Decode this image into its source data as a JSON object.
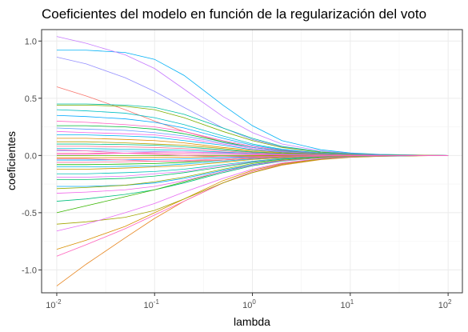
{
  "chart_data": {
    "type": "line",
    "title": "Coeficientes del modelo en función de la regularización del voto",
    "xlabel": "lambda",
    "ylabel": "coeficientes",
    "x_scale": "log10",
    "xlim": [
      0.007,
      140
    ],
    "ylim": [
      -1.2,
      1.1
    ],
    "x_ticks": [
      {
        "value": 0.01,
        "base": "10",
        "exp": "-2"
      },
      {
        "value": 0.1,
        "base": "10",
        "exp": "-1"
      },
      {
        "value": 1,
        "base": "10",
        "exp": "0"
      },
      {
        "value": 10,
        "base": "10",
        "exp": "1"
      },
      {
        "value": 100,
        "base": "10",
        "exp": "2"
      }
    ],
    "y_ticks": [
      {
        "value": -1.0,
        "label": "-1.0"
      },
      {
        "value": -0.5,
        "label": "-0.5"
      },
      {
        "value": 0.0,
        "label": "0.0"
      },
      {
        "value": 0.5,
        "label": "0.5"
      },
      {
        "value": 1.0,
        "label": "1.0"
      }
    ],
    "grid": true,
    "legend": "none",
    "x": [
      0.01,
      0.02,
      0.05,
      0.1,
      0.2,
      0.5,
      1,
      2,
      5,
      10,
      20,
      50,
      100
    ],
    "series": [
      {
        "color": "#F8766D",
        "values": [
          0.6,
          0.52,
          0.4,
          0.3,
          0.21,
          0.12,
          0.07,
          0.04,
          0.017,
          0.008,
          0.004,
          0.002,
          0.0
        ]
      },
      {
        "color": "#E7851E",
        "values": [
          -1.14,
          -0.95,
          -0.72,
          -0.55,
          -0.4,
          -0.24,
          -0.15,
          -0.085,
          -0.036,
          -0.017,
          -0.008,
          -0.003,
          0.0
        ]
      },
      {
        "color": "#00B0F6",
        "values": [
          0.92,
          0.92,
          0.9,
          0.84,
          0.7,
          0.44,
          0.26,
          0.13,
          0.05,
          0.022,
          0.01,
          0.004,
          0.0
        ]
      },
      {
        "color": "#C77CFF",
        "values": [
          1.04,
          0.98,
          0.88,
          0.76,
          0.58,
          0.34,
          0.2,
          0.1,
          0.04,
          0.018,
          0.008,
          0.003,
          0.0
        ]
      },
      {
        "color": "#9590FF",
        "values": [
          0.86,
          0.8,
          0.68,
          0.56,
          0.42,
          0.24,
          0.14,
          0.075,
          0.03,
          0.014,
          0.006,
          0.002,
          0.0
        ]
      },
      {
        "color": "#FF62BC",
        "values": [
          -0.88,
          -0.78,
          -0.64,
          -0.52,
          -0.4,
          -0.24,
          -0.14,
          -0.075,
          -0.03,
          -0.014,
          -0.006,
          -0.002,
          0.0
        ]
      },
      {
        "color": "#D89000",
        "values": [
          -0.82,
          -0.74,
          -0.62,
          -0.5,
          -0.38,
          -0.22,
          -0.13,
          -0.07,
          -0.028,
          -0.013,
          -0.006,
          -0.002,
          0.0
        ]
      },
      {
        "color": "#A3A500",
        "values": [
          -0.6,
          -0.58,
          -0.54,
          -0.48,
          -0.38,
          -0.24,
          -0.15,
          -0.08,
          -0.032,
          -0.015,
          -0.007,
          -0.003,
          0.0
        ]
      },
      {
        "color": "#E76BF3",
        "values": [
          -0.66,
          -0.6,
          -0.5,
          -0.42,
          -0.32,
          -0.2,
          -0.12,
          -0.065,
          -0.026,
          -0.012,
          -0.005,
          -0.002,
          0.0
        ]
      },
      {
        "color": "#00BF7D",
        "values": [
          -0.4,
          -0.38,
          -0.34,
          -0.3,
          -0.24,
          -0.15,
          -0.09,
          -0.05,
          -0.02,
          -0.009,
          -0.004,
          -0.002,
          0.0
        ]
      },
      {
        "color": "#39B600",
        "values": [
          -0.5,
          -0.44,
          -0.36,
          -0.3,
          -0.23,
          -0.14,
          -0.08,
          -0.045,
          -0.018,
          -0.008,
          -0.004,
          -0.001,
          0.0
        ]
      },
      {
        "color": "#00C1A3",
        "values": [
          0.45,
          0.45,
          0.44,
          0.42,
          0.36,
          0.24,
          0.15,
          0.08,
          0.032,
          0.015,
          0.007,
          0.003,
          0.0
        ]
      },
      {
        "color": "#7CAE00",
        "values": [
          0.44,
          0.44,
          0.43,
          0.4,
          0.33,
          0.21,
          0.13,
          0.07,
          0.028,
          0.013,
          0.006,
          0.002,
          0.0
        ]
      },
      {
        "color": "#00BFC4",
        "values": [
          0.4,
          0.39,
          0.37,
          0.33,
          0.27,
          0.17,
          0.1,
          0.055,
          0.022,
          0.01,
          0.005,
          0.002,
          0.0
        ]
      },
      {
        "color": "#00A9FF",
        "values": [
          0.35,
          0.34,
          0.32,
          0.29,
          0.24,
          0.15,
          0.09,
          0.05,
          0.02,
          0.009,
          0.004,
          0.002,
          0.0
        ]
      },
      {
        "color": "#FF61C3",
        "values": [
          0.3,
          0.29,
          0.27,
          0.25,
          0.21,
          0.13,
          0.08,
          0.045,
          0.018,
          0.008,
          0.004,
          0.001,
          0.0
        ]
      },
      {
        "color": "#00BA38",
        "values": [
          0.26,
          0.26,
          0.25,
          0.23,
          0.19,
          0.12,
          0.07,
          0.04,
          0.016,
          0.007,
          0.003,
          0.001,
          0.0
        ]
      },
      {
        "color": "#619CFF",
        "values": [
          0.24,
          0.23,
          0.22,
          0.2,
          0.17,
          0.11,
          0.07,
          0.036,
          0.014,
          0.007,
          0.003,
          0.001,
          0.0
        ]
      },
      {
        "color": "#F564E3",
        "values": [
          0.21,
          0.2,
          0.19,
          0.18,
          0.15,
          0.1,
          0.06,
          0.032,
          0.013,
          0.006,
          0.003,
          0.001,
          0.0
        ]
      },
      {
        "color": "#00B4F0",
        "values": [
          0.18,
          0.18,
          0.17,
          0.16,
          0.13,
          0.09,
          0.05,
          0.028,
          0.011,
          0.005,
          0.002,
          0.001,
          0.0
        ]
      },
      {
        "color": "#DE8C00",
        "values": [
          0.15,
          0.15,
          0.14,
          0.13,
          0.11,
          0.07,
          0.045,
          0.024,
          0.01,
          0.005,
          0.002,
          0.001,
          0.0
        ]
      },
      {
        "color": "#B79F00",
        "values": [
          0.12,
          0.12,
          0.11,
          0.1,
          0.09,
          0.06,
          0.035,
          0.02,
          0.008,
          0.004,
          0.002,
          0.001,
          0.0
        ]
      },
      {
        "color": "#00C08B",
        "values": [
          0.1,
          0.1,
          0.095,
          0.09,
          0.075,
          0.05,
          0.03,
          0.016,
          0.006,
          0.003,
          0.001,
          0.0,
          0.0
        ]
      },
      {
        "color": "#FF6C91",
        "values": [
          0.08,
          0.08,
          0.075,
          0.07,
          0.06,
          0.04,
          0.024,
          0.013,
          0.005,
          0.002,
          0.001,
          0.0,
          0.0
        ]
      },
      {
        "color": "#00BCD8",
        "values": [
          0.06,
          0.06,
          0.055,
          0.05,
          0.045,
          0.03,
          0.018,
          0.01,
          0.004,
          0.002,
          0.001,
          0.0,
          0.0
        ]
      },
      {
        "color": "#8494FF",
        "values": [
          0.04,
          0.04,
          0.038,
          0.035,
          0.03,
          0.02,
          0.012,
          0.007,
          0.003,
          0.001,
          0.0,
          0.0,
          0.0
        ]
      },
      {
        "color": "#FF699C",
        "values": [
          0.02,
          0.02,
          0.019,
          0.018,
          0.015,
          0.01,
          0.006,
          0.003,
          0.001,
          0.001,
          0.0,
          0.0,
          0.0
        ]
      },
      {
        "color": "#53B400",
        "values": [
          0.0,
          0.0,
          0.0,
          0.0,
          0.0,
          0.0,
          0.0,
          0.0,
          0.0,
          0.0,
          0.0,
          0.0,
          0.0
        ]
      },
      {
        "color": "#E58700",
        "values": [
          -0.02,
          -0.02,
          -0.019,
          -0.018,
          -0.015,
          -0.01,
          -0.006,
          -0.003,
          -0.001,
          -0.001,
          0.0,
          0.0,
          0.0
        ]
      },
      {
        "color": "#00A5FF",
        "values": [
          -0.04,
          -0.04,
          -0.038,
          -0.035,
          -0.03,
          -0.02,
          -0.012,
          -0.007,
          -0.003,
          -0.001,
          0.0,
          0.0,
          0.0
        ]
      },
      {
        "color": "#FF6A98",
        "values": [
          -0.06,
          -0.06,
          -0.055,
          -0.05,
          -0.045,
          -0.03,
          -0.018,
          -0.01,
          -0.004,
          -0.002,
          -0.001,
          0.0,
          0.0
        ]
      },
      {
        "color": "#0CB702",
        "values": [
          -0.08,
          -0.08,
          -0.075,
          -0.07,
          -0.06,
          -0.04,
          -0.024,
          -0.013,
          -0.005,
          -0.002,
          -0.001,
          0.0,
          0.0
        ]
      },
      {
        "color": "#00B8E7",
        "values": [
          -0.1,
          -0.1,
          -0.095,
          -0.09,
          -0.075,
          -0.05,
          -0.03,
          -0.016,
          -0.006,
          -0.003,
          -0.001,
          0.0,
          0.0
        ]
      },
      {
        "color": "#C99800",
        "values": [
          -0.12,
          -0.12,
          -0.11,
          -0.1,
          -0.09,
          -0.06,
          -0.035,
          -0.02,
          -0.008,
          -0.004,
          -0.002,
          -0.001,
          0.0
        ]
      },
      {
        "color": "#00C0B8",
        "values": [
          -0.16,
          -0.16,
          -0.15,
          -0.14,
          -0.12,
          -0.08,
          -0.05,
          -0.026,
          -0.01,
          -0.005,
          -0.002,
          -0.001,
          0.0
        ]
      },
      {
        "color": "#E36EF6",
        "values": [
          -0.19,
          -0.19,
          -0.18,
          -0.16,
          -0.14,
          -0.09,
          -0.055,
          -0.03,
          -0.012,
          -0.006,
          -0.003,
          -0.001,
          0.0
        ]
      },
      {
        "color": "#00BE67",
        "values": [
          -0.21,
          -0.21,
          -0.2,
          -0.18,
          -0.15,
          -0.1,
          -0.06,
          -0.033,
          -0.013,
          -0.006,
          -0.003,
          -0.001,
          0.0
        ]
      },
      {
        "color": "#00ABFD",
        "values": [
          -0.27,
          -0.27,
          -0.26,
          -0.24,
          -0.2,
          -0.13,
          -0.08,
          -0.043,
          -0.017,
          -0.008,
          -0.004,
          -0.001,
          0.0
        ]
      },
      {
        "color": "#F066EA",
        "values": [
          -0.33,
          -0.32,
          -0.3,
          -0.27,
          -0.22,
          -0.14,
          -0.085,
          -0.046,
          -0.018,
          -0.008,
          -0.004,
          -0.001,
          0.0
        ]
      },
      {
        "color": "#93AA00",
        "values": [
          -0.29,
          -0.28,
          -0.26,
          -0.23,
          -0.19,
          -0.12,
          -0.07,
          -0.04,
          -0.016,
          -0.007,
          -0.003,
          -0.001,
          0.0
        ]
      },
      {
        "color": "#FF64B0",
        "values": [
          0.05,
          0.04,
          0.02,
          0.01,
          0.0,
          -0.01,
          -0.01,
          -0.006,
          -0.002,
          -0.001,
          0.0,
          0.0,
          0.0
        ]
      },
      {
        "color": "#FF6C9A",
        "values": [
          -0.03,
          -0.03,
          -0.04,
          -0.05,
          -0.05,
          -0.04,
          -0.025,
          -0.014,
          -0.006,
          -0.003,
          -0.001,
          0.0,
          0.0
        ]
      },
      {
        "color": "#FD61D1",
        "values": [
          0.01,
          0.01,
          0.02,
          0.03,
          0.03,
          0.025,
          0.015,
          0.008,
          0.003,
          0.001,
          0.0,
          0.0,
          0.0
        ]
      }
    ]
  }
}
